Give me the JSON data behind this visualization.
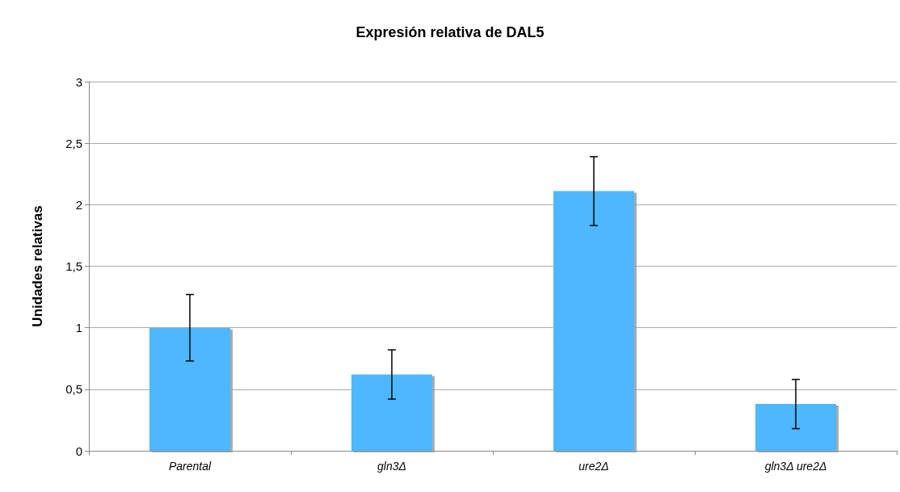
{
  "chart_data": {
    "type": "bar",
    "title": "Expresión relativa de DAL5",
    "ylabel": "Unidades relativas",
    "categories": [
      "Parental",
      "gln3Δ",
      "ure2Δ",
      "gln3Δ ure2Δ"
    ],
    "values": [
      1.0,
      0.62,
      2.11,
      0.38
    ],
    "errors": [
      0.27,
      0.2,
      0.28,
      0.2
    ],
    "color": "#4db8ff",
    "ylim": [
      0,
      3
    ],
    "yticks": [
      0,
      {
        "value": 0.5,
        "label": "0,5"
      },
      1,
      {
        "value": 1.5,
        "label": "1,5"
      },
      2,
      {
        "value": 2.5,
        "label": "2,5"
      },
      3
    ],
    "grid": "y"
  }
}
